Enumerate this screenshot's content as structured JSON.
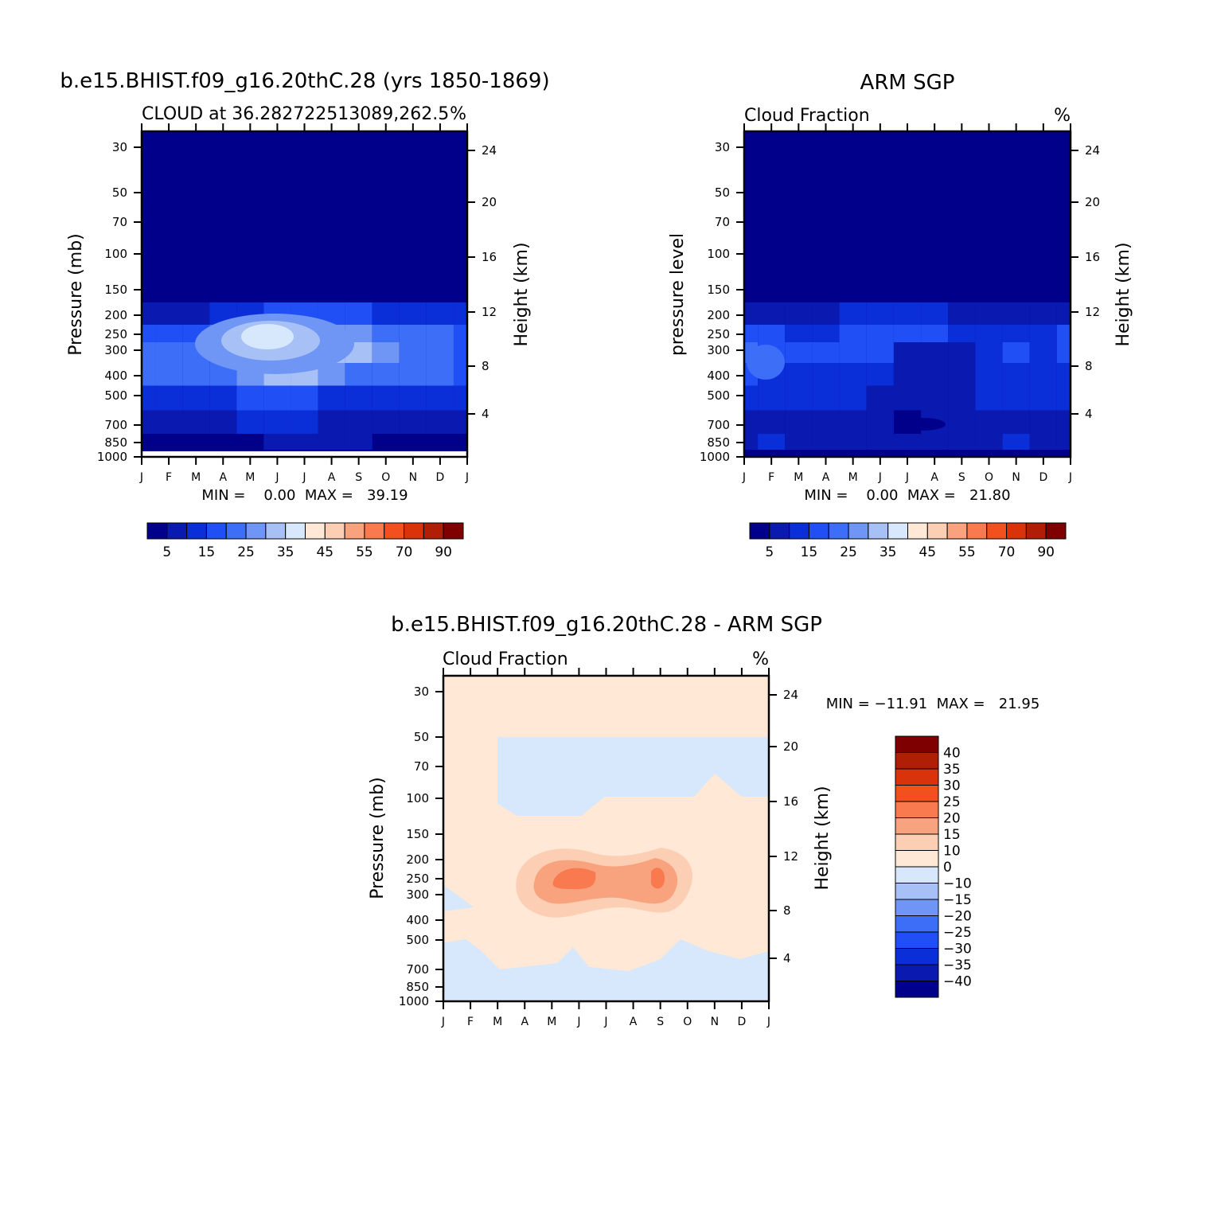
{
  "chart_data": [
    {
      "type": "heatmap",
      "title": "b.e15.BHIST.f09_g16.20thC.28 (yrs 1850-1869)",
      "subtitle_left": "CLOUD at 36.282722513089,262.5",
      "subtitle_right": "%",
      "ylabel": "Pressure (mb)",
      "ylabel_right": "Height (km)",
      "x": [
        "J",
        "F",
        "M",
        "A",
        "M",
        "J",
        "J",
        "A",
        "S",
        "O",
        "N",
        "D",
        "J"
      ],
      "pressure_ticks": [
        "30",
        "50",
        "70",
        "100",
        "150",
        "200",
        "250",
        "300",
        "400",
        "500",
        "700",
        "850",
        "1000"
      ],
      "height_ticks": [
        "24",
        "20",
        "16",
        "12",
        "8",
        "4"
      ],
      "stats": "MIN =    0.00  MAX =   39.19",
      "colorbar_labels": [
        "5",
        "15",
        "25",
        "35",
        "45",
        "55",
        "70",
        "90"
      ],
      "colorbar_colors": [
        "#00008B",
        "#0A1AB0",
        "#0A2ED8",
        "#1F4FF5",
        "#3C6EF8",
        "#6F95F5",
        "#A7C1F7",
        "#D7E7FC",
        "#FFE8D6",
        "#FCCFB4",
        "#F9A27E",
        "#F87A4E",
        "#F3501F",
        "#DA320B",
        "#B01E06",
        "#7F0000"
      ],
      "level_colors": [
        "#00008B",
        "#0A1AB0",
        "#0A2ED8",
        "#1F4FF5",
        "#3C6EF8",
        "#6F95F5",
        "#A7C1F7",
        "#D7E7FC"
      ],
      "profile": [
        0,
        1,
        3,
        5,
        7,
        6,
        5,
        4,
        2,
        1,
        0,
        0,
        0
      ],
      "grid_rows": [
        [
          0,
          0,
          0,
          0,
          0,
          0,
          0,
          0,
          0,
          0,
          0,
          0,
          0
        ],
        [
          0,
          0,
          0,
          0,
          0,
          0,
          0,
          0,
          0,
          0,
          0,
          0,
          0
        ],
        [
          0,
          0,
          0,
          0,
          0,
          0,
          0,
          0,
          0,
          0,
          0,
          0,
          0
        ],
        [
          0,
          0,
          0,
          0,
          0,
          0,
          0,
          0,
          0,
          0,
          0,
          0,
          0
        ],
        [
          0,
          0,
          0,
          0,
          0,
          0,
          0,
          0,
          0,
          0,
          0,
          0,
          0
        ],
        [
          1,
          1,
          1,
          2,
          2,
          3,
          3,
          3,
          3,
          2,
          2,
          2,
          2
        ],
        [
          3,
          3,
          3,
          4,
          5,
          5,
          5,
          5,
          5,
          4,
          4,
          4,
          3
        ],
        [
          4,
          4,
          4,
          4,
          5,
          7,
          6,
          6,
          6,
          5,
          4,
          4,
          3
        ],
        [
          4,
          4,
          4,
          4,
          5,
          6,
          6,
          5,
          4,
          4,
          4,
          4,
          3
        ],
        [
          2,
          2,
          2,
          2,
          3,
          3,
          3,
          2,
          2,
          2,
          2,
          2,
          2
        ],
        [
          1,
          1,
          1,
          1,
          2,
          2,
          2,
          1,
          1,
          1,
          1,
          1,
          1
        ],
        [
          0,
          0,
          0,
          0,
          0,
          1,
          1,
          1,
          1,
          0,
          0,
          0,
          0
        ],
        [
          0,
          0,
          0,
          0,
          0,
          0,
          0,
          0,
          0,
          0,
          0,
          0,
          0
        ]
      ]
    },
    {
      "type": "heatmap",
      "title": "ARM SGP",
      "subtitle_left": "Cloud Fraction",
      "subtitle_right": "%",
      "ylabel": "pressure level",
      "ylabel_right": "Height (km)",
      "x": [
        "J",
        "F",
        "M",
        "A",
        "M",
        "J",
        "J",
        "A",
        "S",
        "O",
        "N",
        "D",
        "J"
      ],
      "pressure_ticks": [
        "30",
        "50",
        "70",
        "100",
        "150",
        "200",
        "250",
        "300",
        "400",
        "500",
        "700",
        "850",
        "1000"
      ],
      "height_ticks": [
        "24",
        "20",
        "16",
        "12",
        "8",
        "4"
      ],
      "stats": "MIN =    0.00  MAX =   21.80",
      "colorbar_labels": [
        "5",
        "15",
        "25",
        "35",
        "45",
        "55",
        "70",
        "90"
      ],
      "colorbar_colors": [
        "#00008B",
        "#0A1AB0",
        "#0A2ED8",
        "#1F4FF5",
        "#3C6EF8",
        "#6F95F5",
        "#A7C1F7",
        "#D7E7FC",
        "#FFE8D6",
        "#FCCFB4",
        "#F9A27E",
        "#F87A4E",
        "#F3501F",
        "#DA320B",
        "#B01E06",
        "#7F0000"
      ],
      "level_colors": [
        "#00008B",
        "#0A1AB0",
        "#0A2ED8",
        "#1F4FF5",
        "#3C6EF8",
        "#6F95F5"
      ],
      "grid_rows": [
        [
          0,
          0,
          0,
          0,
          0,
          0,
          0,
          0,
          0,
          0,
          0,
          0,
          0
        ],
        [
          0,
          0,
          0,
          0,
          0,
          0,
          0,
          0,
          0,
          0,
          0,
          0,
          0
        ],
        [
          0,
          0,
          0,
          0,
          0,
          0,
          0,
          0,
          0,
          0,
          0,
          0,
          0
        ],
        [
          0,
          0,
          0,
          0,
          0,
          0,
          0,
          0,
          0,
          0,
          0,
          0,
          0
        ],
        [
          0,
          0,
          0,
          0,
          0,
          0,
          0,
          0,
          0,
          0,
          0,
          0,
          0
        ],
        [
          1,
          1,
          1,
          1,
          2,
          2,
          2,
          2,
          1,
          1,
          1,
          1,
          1
        ],
        [
          3,
          3,
          2,
          2,
          3,
          3,
          3,
          3,
          2,
          2,
          2,
          2,
          3
        ],
        [
          4,
          3,
          3,
          3,
          3,
          3,
          1,
          1,
          1,
          2,
          3,
          2,
          3
        ],
        [
          3,
          2,
          2,
          2,
          2,
          2,
          1,
          1,
          1,
          2,
          2,
          2,
          2
        ],
        [
          2,
          2,
          2,
          2,
          2,
          1,
          1,
          1,
          1,
          2,
          2,
          2,
          2
        ],
        [
          1,
          1,
          1,
          1,
          1,
          1,
          0,
          1,
          1,
          1,
          1,
          1,
          1
        ],
        [
          1,
          2,
          1,
          1,
          1,
          1,
          1,
          1,
          1,
          1,
          2,
          1,
          1
        ],
        [
          0,
          0,
          0,
          0,
          0,
          0,
          0,
          0,
          0,
          0,
          0,
          0,
          0
        ]
      ]
    },
    {
      "type": "heatmap",
      "title": "b.e15.BHIST.f09_g16.20thC.28 - ARM SGP",
      "subtitle_left": "Cloud Fraction",
      "subtitle_right": "%",
      "ylabel": "Pressure (mb)",
      "ylabel_right": "Height (km)",
      "x": [
        "J",
        "F",
        "M",
        "A",
        "M",
        "J",
        "J",
        "A",
        "S",
        "O",
        "N",
        "D",
        "J"
      ],
      "pressure_ticks": [
        "30",
        "50",
        "70",
        "100",
        "150",
        "200",
        "250",
        "300",
        "400",
        "500",
        "700",
        "850",
        "1000"
      ],
      "height_ticks": [
        "24",
        "20",
        "16",
        "12",
        "8",
        "4"
      ],
      "stats": "MIN = −11.91  MAX =   21.95",
      "colorbar_labels": [
        "40",
        "35",
        "30",
        "25",
        "20",
        "15",
        "10",
        "0",
        "−10",
        "−15",
        "−20",
        "−25",
        "−30",
        "−35",
        "−40"
      ],
      "colorbar_colors": [
        "#7F0000",
        "#B01E06",
        "#DA320B",
        "#F3501F",
        "#F87A4E",
        "#F9A27E",
        "#FCCFB4",
        "#FFE8D6",
        "#D7E7FC",
        "#A7C1F7",
        "#6F95F5",
        "#3C6EF8",
        "#1F4FF5",
        "#0A2ED8",
        "#0A1AB0",
        "#00008B"
      ],
      "background_color": "#FFE8D6",
      "negative_color": "#D7E7FC",
      "anomaly_colors": [
        "#FCCFB4",
        "#F9A27E",
        "#F87A4E"
      ]
    }
  ]
}
